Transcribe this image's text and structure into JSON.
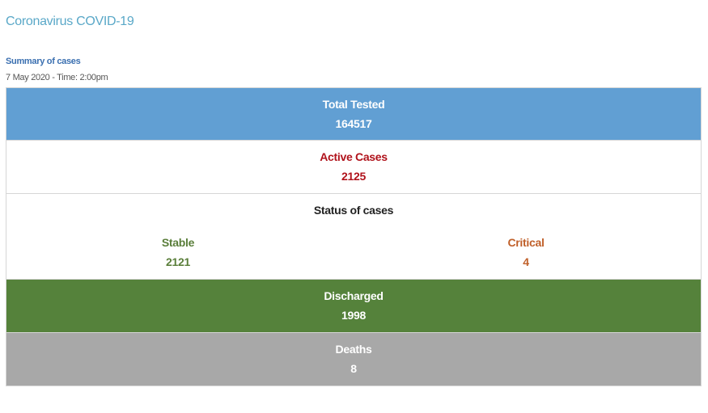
{
  "header": {
    "title": "Coronavirus COVID-19"
  },
  "summary": {
    "heading": "Summary of cases",
    "date": "7 May 2020 - Time: 2:00pm"
  },
  "rows": {
    "total_tested": {
      "label": "Total Tested",
      "value": "164517"
    },
    "active_cases": {
      "label": "Active Cases",
      "value": "2125"
    },
    "status": {
      "label": "Status of cases",
      "stable": {
        "label": "Stable",
        "value": "2121"
      },
      "critical": {
        "label": "Critical",
        "value": "4"
      }
    },
    "discharged": {
      "label": "Discharged",
      "value": "1998"
    },
    "deaths": {
      "label": "Deaths",
      "value": "8"
    }
  },
  "colors": {
    "title": "#5aa8c8",
    "summary_heading": "#3a6fb0",
    "total_tested_bg": "#619fd3",
    "active_text": "#b0121b",
    "stable_text": "#5a7e3a",
    "critical_text": "#c0602a",
    "discharged_bg": "#55823b",
    "deaths_bg": "#a8a8a8"
  }
}
